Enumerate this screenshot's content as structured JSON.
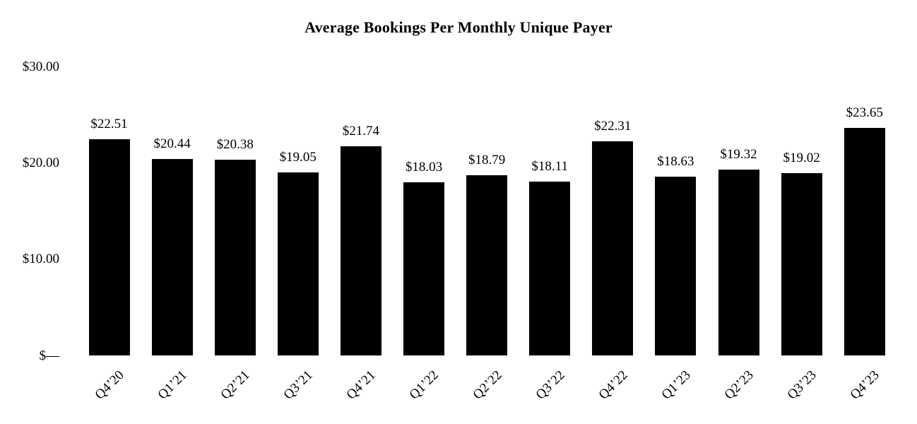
{
  "chart_data": {
    "type": "bar",
    "title": "Average Bookings Per Monthly Unique Payer",
    "categories": [
      "Q4’20",
      "Q1’21",
      "Q2’21",
      "Q3’21",
      "Q4’21",
      "Q1’22",
      "Q2’22",
      "Q3’22",
      "Q4’22",
      "Q1’23",
      "Q2’23",
      "Q3’23",
      "Q4’23"
    ],
    "values": [
      22.51,
      20.44,
      20.38,
      19.05,
      21.74,
      18.03,
      18.79,
      18.11,
      22.31,
      18.63,
      19.32,
      19.02,
      23.65
    ],
    "value_labels": [
      "$22.51",
      "$20.44",
      "$20.38",
      "$19.05",
      "$21.74",
      "$18.03",
      "$18.79",
      "$18.11",
      "$22.31",
      "$18.63",
      "$19.32",
      "$19.02",
      "$23.65"
    ],
    "xlabel": "",
    "ylabel": "",
    "ylim": [
      0,
      30
    ],
    "yticks": [
      {
        "value": 30,
        "label": "$30.00"
      },
      {
        "value": 20,
        "label": "$20.00"
      },
      {
        "value": 10,
        "label": "$10.00"
      },
      {
        "value": 0,
        "label": "$—"
      }
    ],
    "bar_color": "#000000",
    "text_color": "#000000",
    "background": "#ffffff",
    "grid": false,
    "legend_position": "none"
  }
}
